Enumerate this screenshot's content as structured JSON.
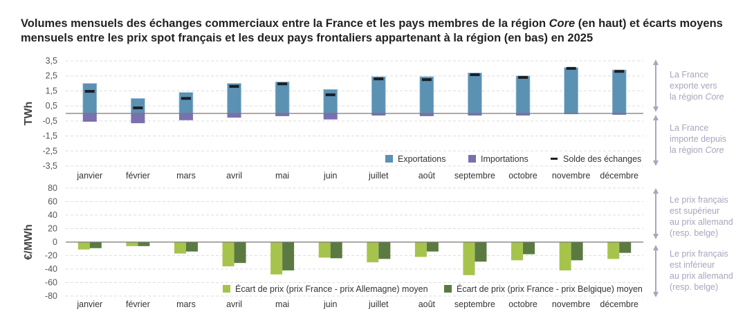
{
  "title": {
    "part1": "Volumes mensuels des échanges commerciaux entre la France et les pays membres de la région ",
    "italic": "Core",
    "part2": " (en haut) et écarts moyens mensuels entre les prix spot français et les deux pays frontaliers appartenant à la région (en bas) en 2025"
  },
  "annotations": {
    "top_up": {
      "line1": "La France",
      "line2": "exporte vers",
      "line3": "la région ",
      "italic": "Core"
    },
    "top_down": {
      "line1": "La France",
      "line2": "importe depuis",
      "line3": "la région ",
      "italic": "Core"
    },
    "bottom_up": {
      "line1": "Le prix français",
      "line2": "est supérieur",
      "line3": "au prix allemand",
      "line4": "(resp. belge)"
    },
    "bottom_down": {
      "line1": "Le prix français",
      "line2": "est inférieur",
      "line3": "au prix allemand",
      "line4": "(resp. belge)"
    }
  },
  "chart_data": [
    {
      "type": "bar",
      "ylabel": "TWh",
      "ylim": [
        -3.5,
        3.5
      ],
      "yticks": [
        "3,5",
        "2,5",
        "1,5",
        "0,5",
        "-0,5",
        "-1,5",
        "-2,5",
        "-3,5"
      ],
      "ytick_values": [
        3.5,
        2.5,
        1.5,
        0.5,
        -0.5,
        -1.5,
        -2.5,
        -3.5
      ],
      "grid": true,
      "legend_position": "bottom-right",
      "categories": [
        "janvier",
        "février",
        "mars",
        "avril",
        "mai",
        "juin",
        "juillet",
        "août",
        "septembre",
        "octobre",
        "novembre",
        "décembre"
      ],
      "series": [
        {
          "name": "Exportations",
          "color": "#5b91b3",
          "values": [
            2.0,
            1.0,
            1.4,
            2.0,
            2.1,
            1.6,
            2.45,
            2.45,
            2.7,
            2.5,
            3.05,
            2.9
          ]
        },
        {
          "name": "Importations",
          "color": "#7a6fb0",
          "values": [
            -0.55,
            -0.65,
            -0.45,
            -0.28,
            -0.18,
            -0.4,
            -0.14,
            -0.18,
            -0.14,
            -0.14,
            -0.05,
            -0.09
          ]
        },
        {
          "name": "Solde des échanges",
          "color": "#1a1f24",
          "marker": "dash",
          "values": [
            1.47,
            0.37,
            1.0,
            1.8,
            1.97,
            1.24,
            2.3,
            2.25,
            2.58,
            2.4,
            3.0,
            2.8
          ]
        }
      ]
    },
    {
      "type": "bar",
      "ylabel": "€/MWh",
      "ylim": [
        -80,
        80
      ],
      "yticks": [
        "80",
        "60",
        "40",
        "20",
        "0",
        "-20",
        "-40",
        "-60",
        "-80"
      ],
      "ytick_values": [
        80,
        60,
        40,
        20,
        0,
        -20,
        -40,
        -60,
        -80
      ],
      "grid": true,
      "legend_position": "bottom-right",
      "categories": [
        "janvier",
        "février",
        "mars",
        "avril",
        "mai",
        "juin",
        "juillet",
        "août",
        "septembre",
        "octobre",
        "novembre",
        "décembre"
      ],
      "series": [
        {
          "name": "Écart de prix (prix France - prix Allemagne) moyen",
          "color": "#a6c44c",
          "values": [
            -11,
            -6,
            -17,
            -36,
            -48,
            -23,
            -30,
            -22,
            -49,
            -27,
            -42,
            -25
          ]
        },
        {
          "name": "Écart de prix (prix France - prix Belgique) moyen",
          "color": "#5b7a41",
          "values": [
            -9,
            -6,
            -14,
            -31,
            -42,
            -24,
            -25,
            -14,
            -29,
            -18,
            -27,
            -16
          ]
        }
      ]
    }
  ]
}
